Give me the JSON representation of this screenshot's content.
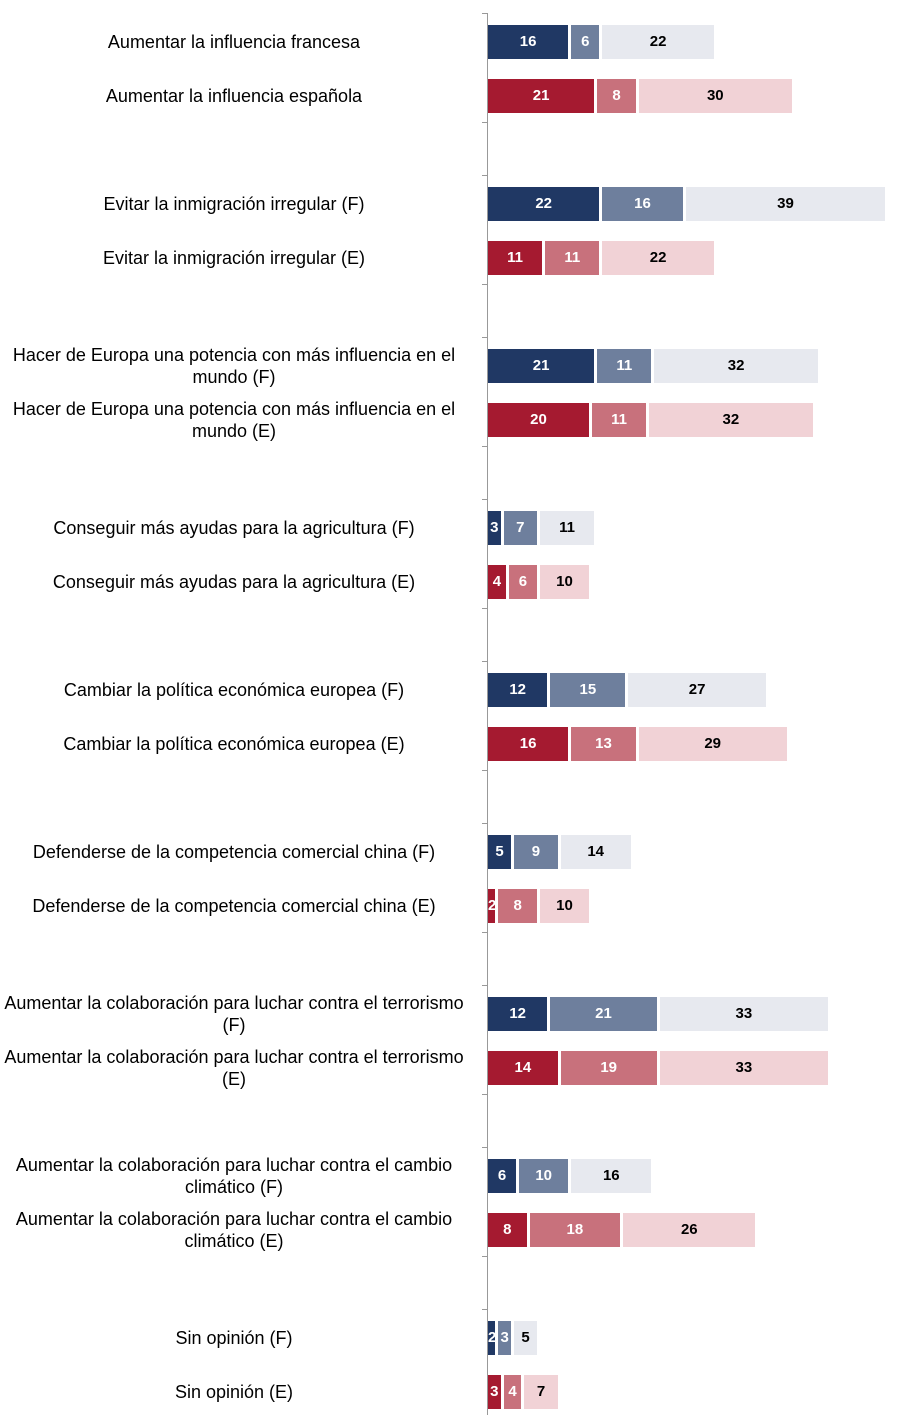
{
  "chart_data": {
    "type": "stacked-bar-horizontal",
    "categories": [
      "Aumentar la influencia francesa",
      "Aumentar la influencia española",
      "Evitar la inmigración irregular (F)",
      "Evitar la inmigración irregular (E)",
      "Hacer de Europa una potencia con más influencia en el mundo (F)",
      "Hacer de Europa una potencia con más influencia en el mundo (E)",
      "Conseguir más ayudas para la agricultura (F)",
      "Conseguir más ayudas para la agricultura (E)",
      "Cambiar la política económica europea (F)",
      "Cambiar la política económica europea (E)",
      "Defenderse de la competencia comercial china (F)",
      "Defenderse de la competencia comercial china (E)",
      "Aumentar la colaboración para luchar contra el terrorismo (F)",
      "Aumentar la colaboración para luchar contra el terrorismo (E)",
      "Aumentar la colaboración para luchar contra el cambio climático (F)",
      "Aumentar la colaboración para luchar contra el cambio climático (E)",
      "Sin opinión (F)",
      "Sin opinión (E)"
    ],
    "series": [
      {
        "colors": [
          "#203864",
          "#a51a30"
        ],
        "values": [
          16,
          21,
          22,
          11,
          21,
          20,
          3,
          4,
          12,
          16,
          5,
          2,
          12,
          14,
          6,
          8,
          2,
          3
        ]
      },
      {
        "colors": [
          "#6e7f9d",
          "#c8717c"
        ],
        "values": [
          6,
          8,
          16,
          11,
          11,
          11,
          7,
          6,
          15,
          13,
          9,
          8,
          21,
          19,
          10,
          18,
          3,
          4
        ]
      },
      {
        "colors": [
          "#e7e9ef",
          "#f1d2d6"
        ],
        "values": [
          22,
          30,
          39,
          22,
          32,
          32,
          11,
          10,
          27,
          29,
          14,
          10,
          33,
          33,
          16,
          26,
          5,
          7
        ]
      }
    ]
  }
}
